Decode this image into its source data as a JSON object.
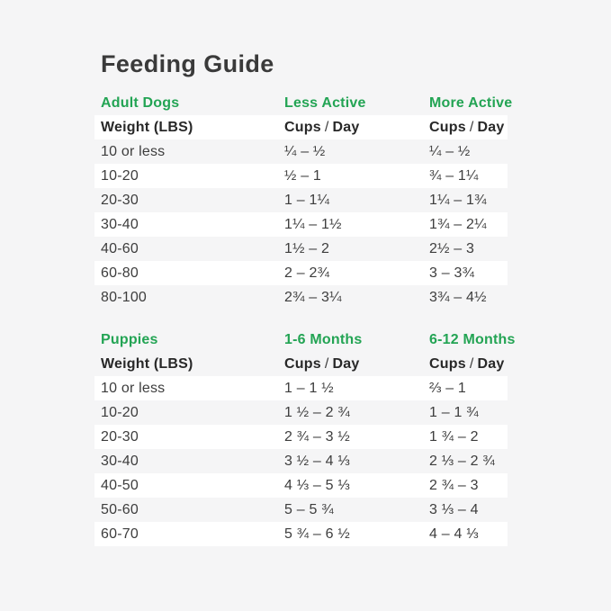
{
  "title": "Feeding Guide",
  "colors": {
    "background": "#f5f5f6",
    "row_band": "#ffffff",
    "accent_green": "#23a454",
    "text_dark": "#3a3a3a"
  },
  "labels": {
    "weight": "Weight (LBS)",
    "cups": "Cups",
    "slash": "/",
    "day": "Day"
  },
  "sections": [
    {
      "name": "Adult Dogs",
      "col2": "Less Active",
      "col3": "More Active",
      "rows": [
        {
          "weight": "10 or less",
          "col2": "¼ – ½",
          "col3": "¼ – ½"
        },
        {
          "weight": "10-20",
          "col2": "½ – 1",
          "col3": "¾ – 1¼"
        },
        {
          "weight": "20-30",
          "col2": "1 – 1¼",
          "col3": "1¼ – 1¾"
        },
        {
          "weight": "30-40",
          "col2": "1¼ – 1½",
          "col3": "1¾ – 2¼"
        },
        {
          "weight": "40-60",
          "col2": "1½ – 2",
          "col3": "2½ – 3"
        },
        {
          "weight": "60-80",
          "col2": "2 – 2¾",
          "col3": "3 – 3¾"
        },
        {
          "weight": "80-100",
          "col2": "2¾ – 3¼",
          "col3": "3¾ – 4½"
        }
      ]
    },
    {
      "name": "Puppies",
      "col2": "1-6 Months",
      "col3": "6-12 Months",
      "rows": [
        {
          "weight": "10 or less",
          "col2": "1 – 1 ½",
          "col3": "⅔ – 1"
        },
        {
          "weight": "10-20",
          "col2": "1 ½ – 2 ¾",
          "col3": "1 – 1 ¾"
        },
        {
          "weight": "20-30",
          "col2": "2 ¾ – 3 ½",
          "col3": "1 ¾ – 2"
        },
        {
          "weight": "30-40",
          "col2": "3 ½ – 4 ⅓",
          "col3": "2 ⅓ – 2 ¾"
        },
        {
          "weight": "40-50",
          "col2": "4 ⅓ – 5 ⅓",
          "col3": "2 ¾ – 3"
        },
        {
          "weight": "50-60",
          "col2": "5 – 5 ¾",
          "col3": "3 ⅓ – 4"
        },
        {
          "weight": "60-70",
          "col2": "5 ¾ – 6 ½",
          "col3": "4 – 4 ⅓"
        }
      ]
    }
  ]
}
